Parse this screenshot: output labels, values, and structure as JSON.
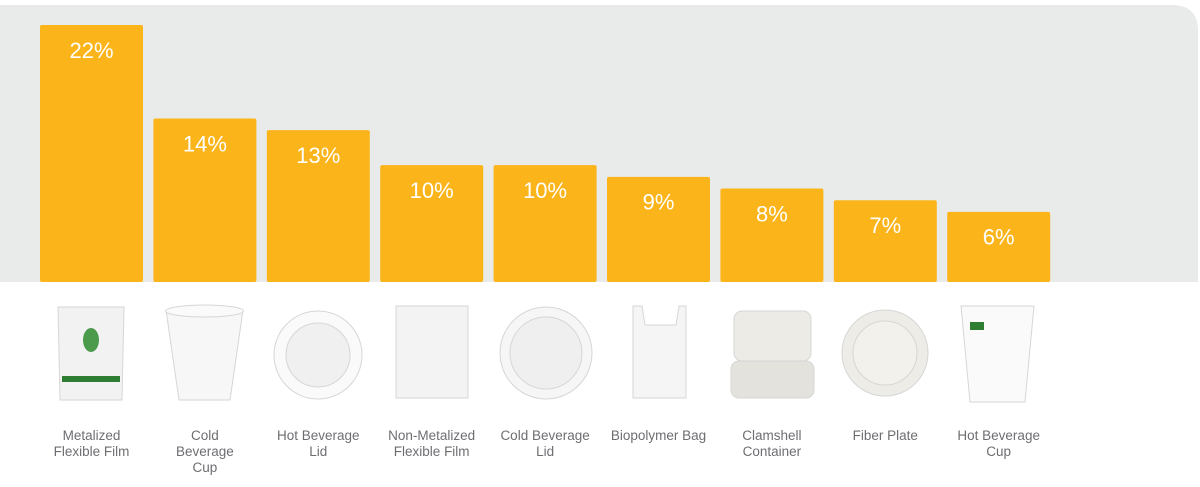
{
  "chart_data": {
    "type": "bar",
    "categories": [
      "Metalized Flexible Film",
      "Cold Beverage Cup",
      "Hot Beverage Lid",
      "Non-Metalized Flexible Film",
      "Cold Beverage Lid",
      "Biopolymer Bag",
      "Clamshell Container",
      "Fiber Plate",
      "Hot Beverage Cup"
    ],
    "values": [
      22,
      14,
      13,
      10,
      10,
      9,
      8,
      7,
      6
    ],
    "value_labels": [
      "22%",
      "14%",
      "13%",
      "10%",
      "10%",
      "9%",
      "8%",
      "7%",
      "6%"
    ],
    "color": "#fbb41a"
  }
}
